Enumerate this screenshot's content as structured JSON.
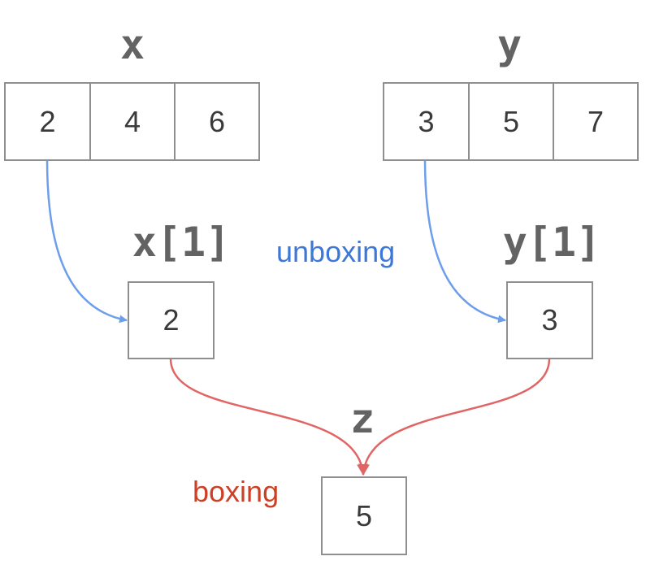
{
  "vector_x": {
    "name": "x",
    "values": [
      "2",
      "4",
      "6"
    ]
  },
  "vector_y": {
    "name": "y",
    "values": [
      "3",
      "5",
      "7"
    ]
  },
  "element_x": {
    "name": "x[1]",
    "value": "2"
  },
  "element_y": {
    "name": "y[1]",
    "value": "3"
  },
  "result_z": {
    "name": "z",
    "value": "5"
  },
  "captions": {
    "unboxing": "unboxing",
    "boxing": "boxing"
  },
  "colors": {
    "unboxing_arrow": "#6d9eeb",
    "unboxing_text": "#3c78d8",
    "boxing_arrow": "#e06666",
    "boxing_text": "#cc4125",
    "box_border": "#8f8f8f",
    "label_text": "#636363"
  }
}
